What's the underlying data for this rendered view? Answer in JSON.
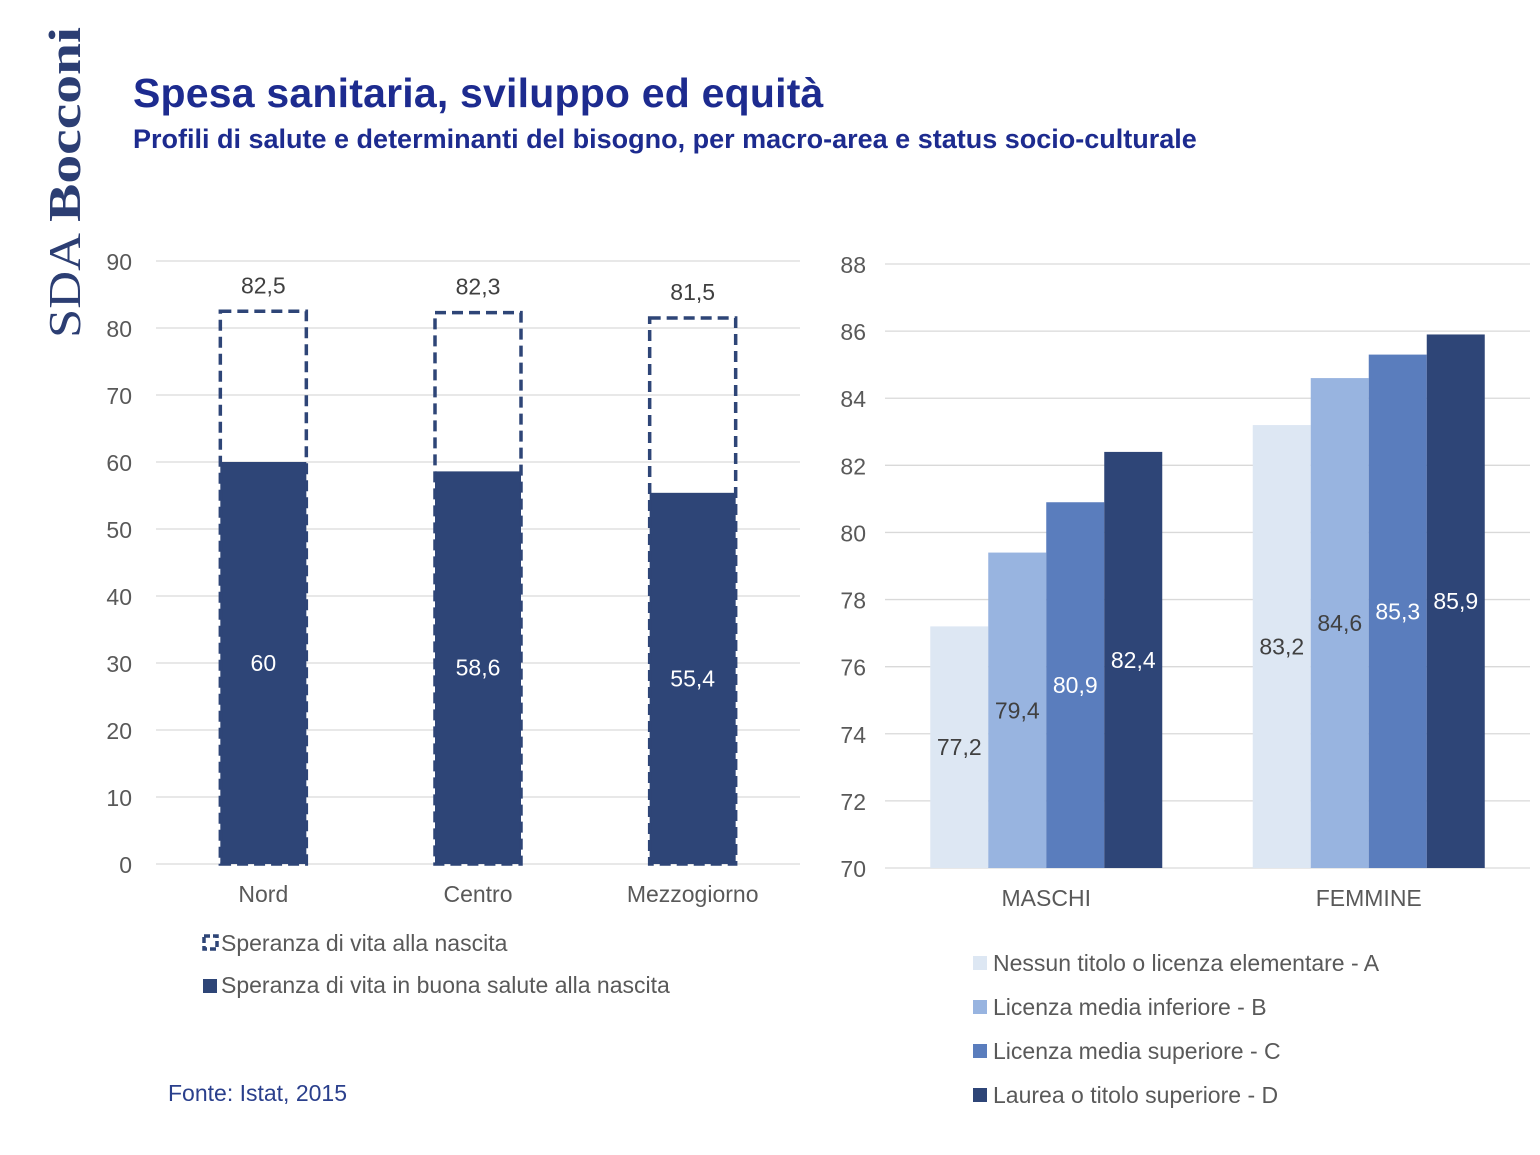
{
  "logo": {
    "text_top": "Bocconi",
    "text_bottom": "SDA",
    "color": "#2c3e73"
  },
  "header": {
    "title": "Spesa sanitaria, sviluppo ed equità",
    "subtitle": "Profili di salute e determinanti del bisogno, per macro-area e status socio-culturale"
  },
  "source": "Fonte: Istat, 2015",
  "colors": {
    "title": "#1d2b8f",
    "dark_blue": "#2e4577",
    "axis_text": "#595959",
    "gridline": "#d9d9d9"
  },
  "chart_data": [
    {
      "type": "bar",
      "stacked": false,
      "overlap": true,
      "categories": [
        "Nord",
        "Centro",
        "Mezzogiorno"
      ],
      "series": [
        {
          "name": "Speranza di vita alla nascita",
          "values": [
            82.5,
            82.3,
            81.5
          ],
          "labels": [
            "82,5",
            "82,3",
            "81,5"
          ],
          "style": "dashed-outline",
          "color": "#2e4577"
        },
        {
          "name": "Speranza di vita in buona salute alla nascita",
          "values": [
            60,
            58.6,
            55.4
          ],
          "labels": [
            "60",
            "58,6",
            "55,4"
          ],
          "style": "filled",
          "color": "#2e4577"
        }
      ],
      "yticks": [
        "0",
        "10",
        "20",
        "30",
        "40",
        "50",
        "60",
        "70",
        "80",
        "90"
      ],
      "ylim": [
        0,
        90
      ],
      "grid": true,
      "legend": "bottom"
    },
    {
      "type": "bar",
      "categories": [
        "MASCHI",
        "FEMMINE"
      ],
      "series": [
        {
          "name": "Nessun titolo o licenza elementare - A",
          "values": [
            77.2,
            83.2
          ],
          "labels": [
            "77,2",
            "83,2"
          ],
          "color": "#dde7f3"
        },
        {
          "name": "Licenza media inferiore -  B",
          "values": [
            79.4,
            84.6
          ],
          "labels": [
            "79,4",
            "84,6"
          ],
          "color": "#98b4e0"
        },
        {
          "name": "Licenza media superiore - C",
          "values": [
            80.9,
            85.3
          ],
          "labels": [
            "80,9",
            "85,3"
          ],
          "color": "#5a7dbd"
        },
        {
          "name": "Laurea o titolo superiore - D",
          "values": [
            82.4,
            85.9
          ],
          "labels": [
            "82,4",
            "85,9"
          ],
          "color": "#2e4577"
        }
      ],
      "yticks": [
        "70",
        "72",
        "74",
        "76",
        "78",
        "80",
        "82",
        "84",
        "86",
        "88"
      ],
      "ylim": [
        70,
        88
      ],
      "grid": true,
      "legend": "bottom"
    }
  ]
}
